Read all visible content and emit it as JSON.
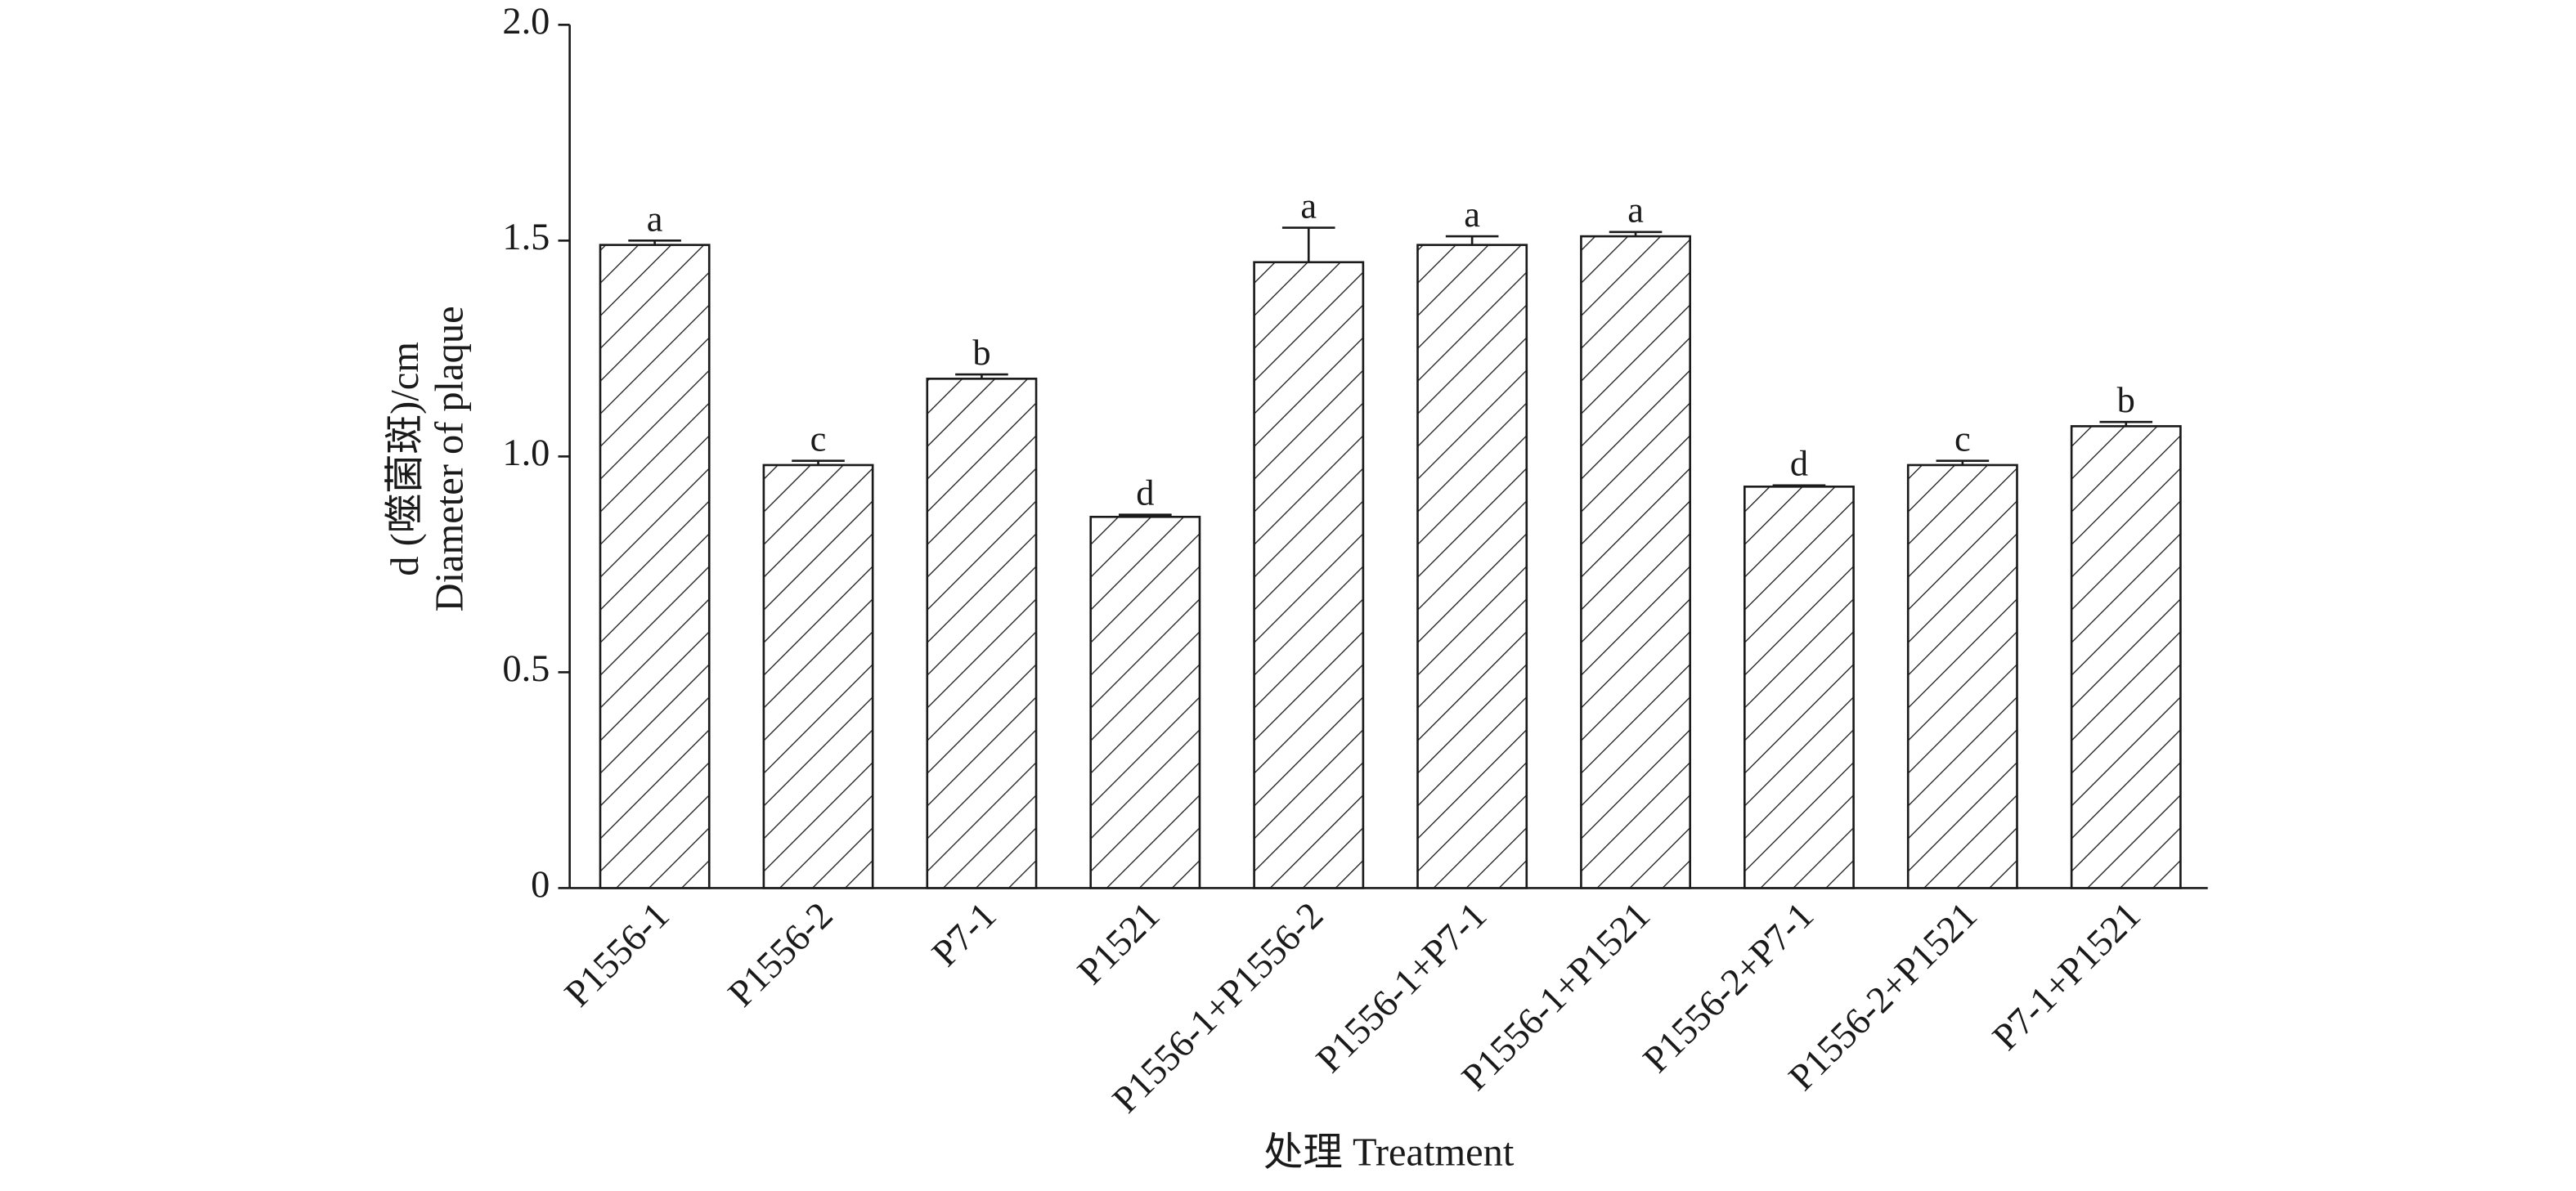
{
  "chart_data": {
    "type": "bar",
    "xlabel": "处理 Treatment",
    "ylabel": [
      "d (噬菌斑)/cm",
      "Diameter of plaque"
    ],
    "categories": [
      "P1556-1",
      "P1556-2",
      "P7-1",
      "P1521",
      "P1556-1+P1556-2",
      "P1556-1+P7-1",
      "P1556-1+P1521",
      "P1556-2+P7-1",
      "P1556-2+P1521",
      "P7-1+P1521"
    ],
    "values": [
      1.49,
      0.98,
      1.18,
      0.86,
      1.45,
      1.49,
      1.51,
      0.93,
      0.98,
      1.07
    ],
    "errors": [
      0.01,
      0.01,
      0.01,
      0.005,
      0.08,
      0.02,
      0.01,
      0.003,
      0.01,
      0.01
    ],
    "letters": [
      "a",
      "c",
      "b",
      "d",
      "a",
      "a",
      "a",
      "d",
      "c",
      "b"
    ],
    "color": "#1a1a1a",
    "hatch": "diagonal",
    "ylim": [
      0,
      2
    ],
    "yticks": [
      0,
      0.5,
      {
        "value": 1,
        "label": "1.0"
      },
      1.5,
      {
        "value": 2,
        "label": "2.0"
      }
    ],
    "grid": false
  }
}
